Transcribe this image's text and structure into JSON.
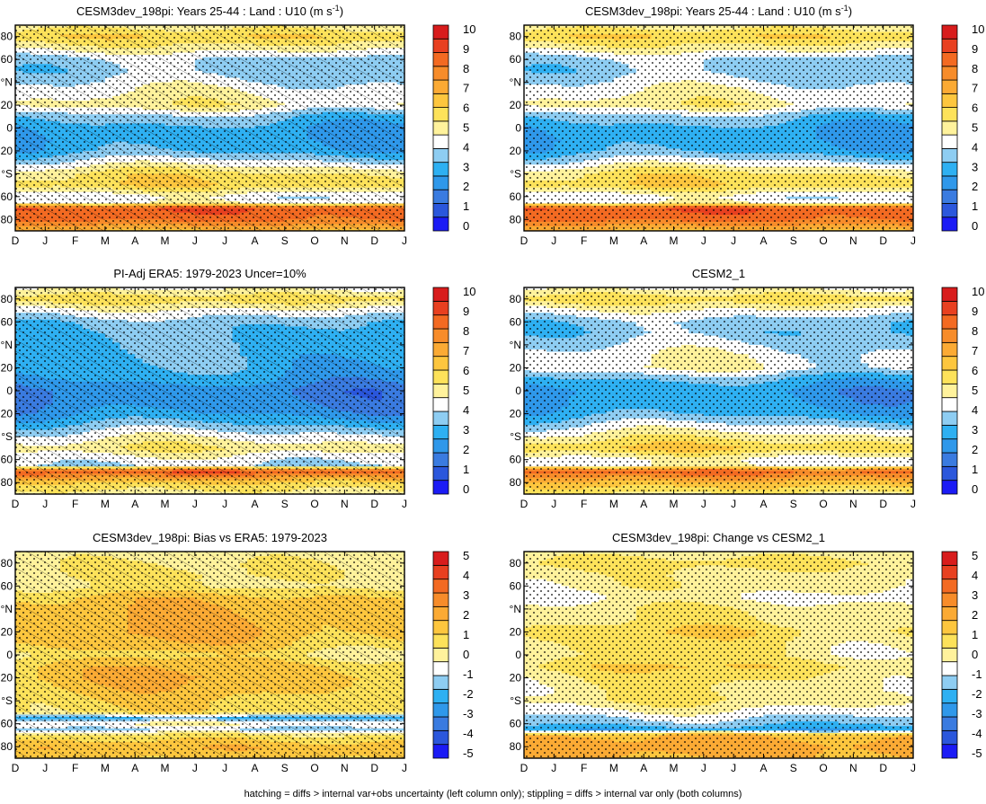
{
  "figure": {
    "footer": "hatching = diffs > internal var+obs uncertainty (left column only); stippling = diffs > internal var only (both columns)"
  },
  "chart_data": [
    {
      "type": "heatmap",
      "title": "CESM3dev_198pi: Years 25-44 : Land : U10 (m s",
      "title_superscript": "-1",
      "title_suffix": ")",
      "x_tick_labels": [
        "D",
        "J",
        "F",
        "M",
        "A",
        "M",
        "J",
        "J",
        "A",
        "S",
        "O",
        "N",
        "D",
        "J"
      ],
      "y_tick_labels": [
        "80",
        "60",
        "°N",
        "20",
        "0",
        "20",
        "°S",
        "60",
        "80"
      ],
      "y_tick_values": [
        80,
        60,
        40,
        20,
        0,
        -20,
        -40,
        -60,
        -80
      ],
      "ylim": [
        -90,
        90
      ],
      "colorbar": {
        "labels": [
          "10",
          "9",
          "8",
          "7",
          "6",
          "5",
          "4",
          "3",
          "2",
          "1",
          "0"
        ],
        "min": 0,
        "max": 10
      },
      "zonal_profile": {
        "lat": [
          90,
          80,
          70,
          60,
          50,
          40,
          30,
          20,
          10,
          0,
          -10,
          -20,
          -30,
          -40,
          -50,
          -60,
          -65,
          -70,
          -80,
          -90
        ],
        "value": [
          5,
          6,
          5,
          3.8,
          3.6,
          4.1,
          4.6,
          4.9,
          3.5,
          2.9,
          2.8,
          3.0,
          4.2,
          5.5,
          5.8,
          4.2,
          4.5,
          8.6,
          8.2,
          6.5
        ]
      },
      "hatching": true,
      "stippling": true
    },
    {
      "type": "heatmap",
      "title": "CESM3dev_198pi: Years 25-44 : Land : U10 (m s",
      "title_superscript": "-1",
      "title_suffix": ")",
      "x_tick_labels": [
        "D",
        "J",
        "F",
        "M",
        "A",
        "M",
        "J",
        "J",
        "A",
        "S",
        "O",
        "N",
        "D",
        "J"
      ],
      "y_tick_labels": [
        "80",
        "60",
        "°N",
        "20",
        "0",
        "20",
        "°S",
        "60",
        "80"
      ],
      "y_tick_values": [
        80,
        60,
        40,
        20,
        0,
        -20,
        -40,
        -60,
        -80
      ],
      "ylim": [
        -90,
        90
      ],
      "colorbar": {
        "labels": [
          "10",
          "9",
          "8",
          "7",
          "6",
          "5",
          "4",
          "3",
          "2",
          "1",
          "0"
        ],
        "min": 0,
        "max": 10
      },
      "zonal_profile": {
        "lat": [
          90,
          80,
          70,
          60,
          50,
          40,
          30,
          20,
          10,
          0,
          -10,
          -20,
          -30,
          -40,
          -50,
          -60,
          -65,
          -70,
          -80,
          -90
        ],
        "value": [
          5,
          6,
          5,
          3.8,
          3.6,
          4.1,
          4.6,
          4.9,
          3.5,
          2.9,
          2.8,
          3.0,
          4.2,
          5.5,
          5.8,
          4.2,
          4.5,
          8.6,
          8.2,
          6.5
        ]
      },
      "hatching": false,
      "stippling": true
    },
    {
      "type": "heatmap",
      "title": "PI-Adj ERA5: 1979-2023 Uncer=10%",
      "x_tick_labels": [
        "D",
        "J",
        "F",
        "M",
        "A",
        "M",
        "J",
        "J",
        "A",
        "S",
        "O",
        "N",
        "D",
        "J"
      ],
      "y_tick_labels": [
        "80",
        "60",
        "°N",
        "20",
        "0",
        "20",
        "°S",
        "60",
        "80"
      ],
      "y_tick_values": [
        80,
        60,
        40,
        20,
        0,
        -20,
        -40,
        -60,
        -80
      ],
      "ylim": [
        -90,
        90
      ],
      "colorbar": {
        "labels": [
          "10",
          "9",
          "8",
          "7",
          "6",
          "5",
          "4",
          "3",
          "2",
          "1",
          "0"
        ],
        "min": 0,
        "max": 10
      },
      "zonal_profile": {
        "lat": [
          90,
          80,
          70,
          60,
          50,
          40,
          30,
          20,
          10,
          0,
          -10,
          -20,
          -30,
          -40,
          -50,
          -60,
          -65,
          -70,
          -80,
          -90
        ],
        "value": [
          4.5,
          5.8,
          4.5,
          3.5,
          3.3,
          3.2,
          3.1,
          3.0,
          2.6,
          2.0,
          2.1,
          2.5,
          3.4,
          4.4,
          5.2,
          4.2,
          4.0,
          8.7,
          6.0,
          5.0
        ]
      },
      "hatching": true,
      "stippling": true
    },
    {
      "type": "heatmap",
      "title": "CESM2_1",
      "x_tick_labels": [
        "D",
        "J",
        "F",
        "M",
        "A",
        "M",
        "J",
        "J",
        "A",
        "S",
        "O",
        "N",
        "D",
        "J"
      ],
      "y_tick_labels": [
        "80",
        "60",
        "°N",
        "20",
        "0",
        "20",
        "°S",
        "60",
        "80"
      ],
      "y_tick_values": [
        80,
        60,
        40,
        20,
        0,
        -20,
        -40,
        -60,
        -80
      ],
      "ylim": [
        -90,
        90
      ],
      "colorbar": {
        "labels": [
          "10",
          "9",
          "8",
          "7",
          "6",
          "5",
          "4",
          "3",
          "2",
          "1",
          "0"
        ],
        "min": 0,
        "max": 10
      },
      "zonal_profile": {
        "lat": [
          90,
          80,
          70,
          60,
          50,
          40,
          30,
          20,
          10,
          0,
          -10,
          -20,
          -30,
          -40,
          -50,
          -60,
          -65,
          -70,
          -80,
          -90
        ],
        "value": [
          4.5,
          5.8,
          4.6,
          3.6,
          3.5,
          4.0,
          4.4,
          4.5,
          3.2,
          2.5,
          2.6,
          3.0,
          4.0,
          5.0,
          6.0,
          4.4,
          4.6,
          8.4,
          6.5,
          5.2
        ]
      },
      "hatching": false,
      "stippling": true
    },
    {
      "type": "heatmap",
      "title": "CESM3dev_198pi: Bias vs ERA5: 1979-2023",
      "x_tick_labels": [
        "D",
        "J",
        "F",
        "M",
        "A",
        "M",
        "J",
        "J",
        "A",
        "S",
        "O",
        "N",
        "D",
        "J"
      ],
      "y_tick_labels": [
        "80",
        "60",
        "°N",
        "20",
        "0",
        "20",
        "°S",
        "60",
        "80"
      ],
      "y_tick_values": [
        80,
        60,
        40,
        20,
        0,
        -20,
        -40,
        -60,
        -80
      ],
      "ylim": [
        -90,
        90
      ],
      "colorbar": {
        "labels": [
          "5",
          "4",
          "3",
          "2",
          "1",
          "0",
          "-1",
          "-2",
          "-3",
          "-4",
          "-5"
        ],
        "min": -5,
        "max": 5
      },
      "zonal_profile": {
        "lat": [
          90,
          80,
          70,
          60,
          50,
          40,
          30,
          20,
          10,
          0,
          -10,
          -20,
          -30,
          -40,
          -50,
          -55,
          -60,
          -65,
          -70,
          -80,
          -90
        ],
        "value": [
          0,
          0.3,
          0.4,
          0.2,
          1.2,
          1.4,
          1.5,
          1.6,
          1.2,
          0.5,
          1.3,
          1.5,
          1.2,
          0.8,
          0.6,
          -2.0,
          -0.3,
          -1.2,
          0.5,
          1.5,
          1.2
        ]
      },
      "hatching": true,
      "stippling": true
    },
    {
      "type": "heatmap",
      "title": "CESM3dev_198pi: Change vs CESM2_1",
      "x_tick_labels": [
        "D",
        "J",
        "F",
        "M",
        "A",
        "M",
        "J",
        "J",
        "A",
        "S",
        "O",
        "N",
        "D",
        "J"
      ],
      "y_tick_labels": [
        "80",
        "60",
        "°N",
        "20",
        "0",
        "20",
        "°S",
        "60",
        "80"
      ],
      "y_tick_values": [
        80,
        60,
        40,
        20,
        0,
        -20,
        -40,
        -60,
        -80
      ],
      "ylim": [
        -90,
        90
      ],
      "colorbar": {
        "labels": [
          "5",
          "4",
          "3",
          "2",
          "1",
          "0",
          "-1",
          "-2",
          "-3",
          "-4",
          "-5"
        ],
        "min": -5,
        "max": 5
      },
      "zonal_profile": {
        "lat": [
          90,
          80,
          70,
          60,
          50,
          40,
          30,
          20,
          10,
          0,
          -10,
          -20,
          -30,
          -40,
          -50,
          -60,
          -65,
          -70,
          -80,
          -90
        ],
        "value": [
          0,
          0.6,
          0.1,
          0,
          -0.4,
          0.1,
          0.2,
          0.7,
          0.3,
          0.1,
          0.8,
          0.3,
          0.1,
          0.2,
          -0.6,
          -1.5,
          -2.2,
          1.6,
          2.0,
          1.7
        ]
      },
      "hatching": false,
      "stippling": true
    }
  ]
}
